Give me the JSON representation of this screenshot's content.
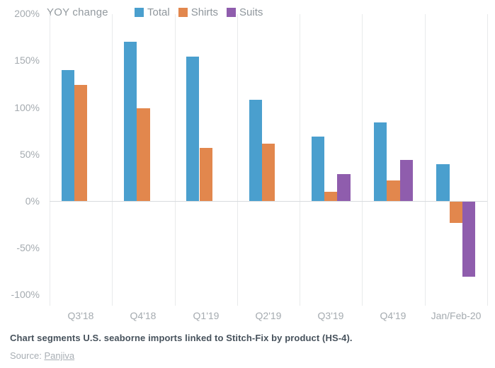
{
  "chart": {
    "title_label": "YOY change"
  },
  "chart_data": {
    "type": "bar",
    "title": "YOY change",
    "categories": [
      "Q3'18",
      "Q4'18",
      "Q1'19",
      "Q2'19",
      "Q3'19",
      "Q4'19",
      "Jan/Feb-20"
    ],
    "series": [
      {
        "name": "Total",
        "color": "#4a9fce",
        "values": [
          140,
          170,
          154,
          108,
          69,
          84,
          39
        ]
      },
      {
        "name": "Shirts",
        "color": "#e2874d",
        "values": [
          124,
          99,
          57,
          61,
          10,
          22,
          -23
        ]
      },
      {
        "name": "Suits",
        "color": "#8f5dad",
        "values": [
          null,
          null,
          null,
          null,
          29,
          44,
          -80
        ]
      }
    ],
    "ylim": [
      -100,
      200
    ],
    "ytick_step": 50,
    "ytick_labels": [
      "200%",
      "150%",
      "100%",
      "50%",
      "0%",
      "-50%",
      "-100%"
    ],
    "grid": "vertical-only",
    "legend_position": "top"
  },
  "footer": {
    "caption": "Chart segments U.S. seaborne imports linked to Stitch-Fix by product (HS-4).",
    "source_prefix": "Source:",
    "source_link": "Panjiva"
  }
}
